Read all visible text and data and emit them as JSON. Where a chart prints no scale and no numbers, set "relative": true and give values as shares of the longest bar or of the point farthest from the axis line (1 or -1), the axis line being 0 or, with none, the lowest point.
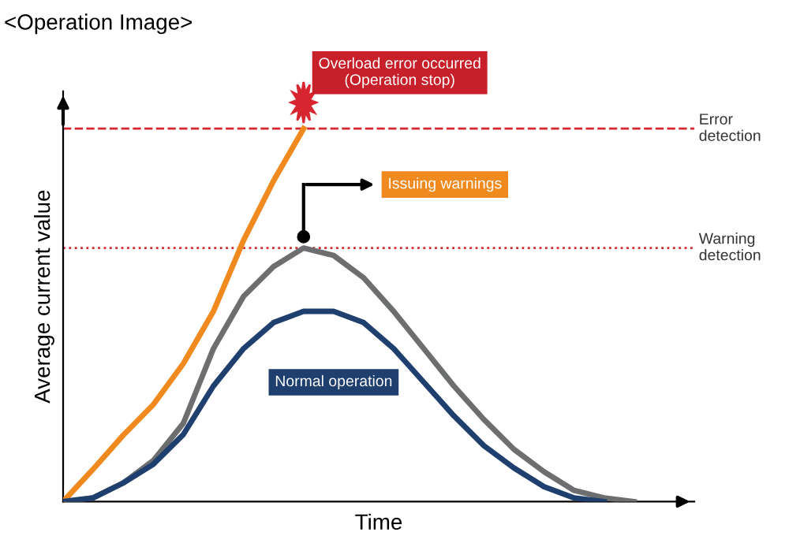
{
  "chart_data": {
    "type": "line",
    "relative": true,
    "title": "<Operation Image>",
    "xlabel": "Time",
    "ylabel": "Average current value",
    "categories": [
      null,
      null,
      null,
      null,
      null,
      null,
      null,
      null,
      null,
      null,
      null,
      null,
      null,
      null,
      null,
      null,
      null,
      null,
      null,
      null,
      null
    ],
    "series": [
      {
        "color": "#f08a1f",
        "values": [
          0,
          0.087,
          0.178,
          0.26,
          0.37,
          0.51,
          0.7,
          0.86,
          1.0,
          null,
          null,
          null,
          null,
          null,
          null,
          null,
          null,
          null,
          null,
          null,
          null
        ]
      },
      {
        "color": "#6d6e70",
        "values": [
          0,
          0.01,
          0.05,
          0.11,
          0.21,
          0.41,
          0.55,
          0.63,
          0.68,
          0.66,
          0.6,
          0.51,
          0.41,
          0.31,
          0.22,
          0.14,
          0.08,
          0.03,
          0.01,
          0,
          null
        ]
      },
      {
        "color": "#1f3f6e",
        "values": [
          0,
          0.01,
          0.05,
          0.1,
          0.18,
          0.31,
          0.41,
          0.48,
          0.51,
          0.51,
          0.48,
          0.41,
          0.32,
          0.23,
          0.15,
          0.09,
          0.04,
          0.01,
          0,
          null,
          null
        ]
      }
    ],
    "ref_lines": [
      {
        "axis": "y",
        "value": 1.0,
        "label": "Error detection",
        "color": "#d7262f",
        "line_style": "dashed"
      },
      {
        "axis": "y",
        "value": 0.68,
        "label": "Warning detection",
        "color": "#d7262f",
        "line_style": "dotted"
      }
    ],
    "annotations": [
      "Overload error occurred\n(Operation stop)",
      "Issuing warnings",
      "Normal operation"
    ],
    "legend": false,
    "grid": false,
    "marker": "none",
    "line_style": "solid"
  }
}
